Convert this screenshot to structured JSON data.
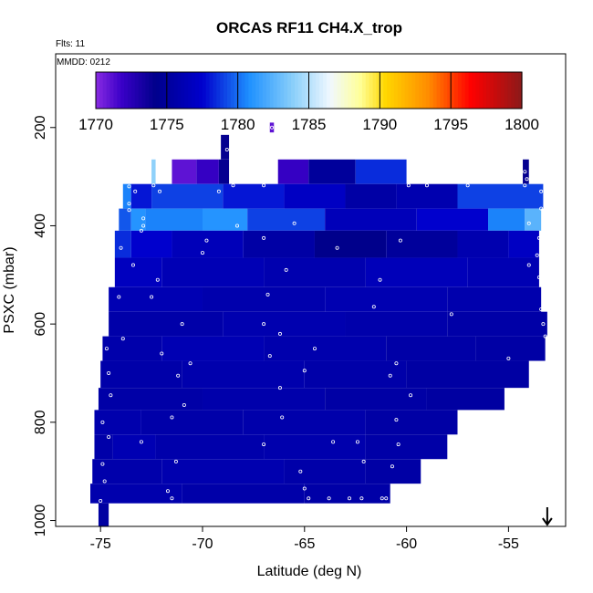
{
  "chart_data": {
    "type": "heatmap",
    "title": "ORCAS RF11 CH4.X_trop",
    "flights_note": "Flts: 11",
    "date_note": "MMDD: 0212",
    "xlabel": "Latitude (deg N)",
    "ylabel": "PSXC (mbar)",
    "xlim": [
      -77.2,
      -52.2
    ],
    "ylim": [
      1012,
      50
    ],
    "x_ticks": [
      -75,
      -70,
      -65,
      -60,
      -55
    ],
    "x_tick_labels": [
      "-75",
      "-70",
      "-65",
      "-60",
      "-55"
    ],
    "y_ticks": [
      200,
      400,
      600,
      800,
      1000
    ],
    "y_tick_labels": [
      "200",
      "400",
      "600",
      "800",
      "1000"
    ],
    "colorbar": {
      "range": [
        1770,
        1800
      ],
      "ticks": [
        1770,
        1775,
        1780,
        1785,
        1790,
        1795,
        1800
      ],
      "tick_labels": [
        "1770",
        "1775",
        "1780",
        "1785",
        "1790",
        "1795",
        "1800"
      ],
      "color_stops": [
        [
          0.0,
          "#8a2be2"
        ],
        [
          0.06,
          "#3a00c8"
        ],
        [
          0.14,
          "#00008b"
        ],
        [
          0.25,
          "#0000cd"
        ],
        [
          0.36,
          "#1e90ff"
        ],
        [
          0.46,
          "#87cefa"
        ],
        [
          0.55,
          "#f0f8ff"
        ],
        [
          0.62,
          "#ffff99"
        ],
        [
          0.68,
          "#ffd700"
        ],
        [
          0.78,
          "#ff8c00"
        ],
        [
          0.88,
          "#ff0000"
        ],
        [
          1.0,
          "#8b1a1a"
        ]
      ]
    },
    "rows": [
      {
        "p_top": 190,
        "p_bot": 210,
        "segments": [
          [
            -66.7,
            -66.5,
            1771
          ]
        ]
      },
      {
        "p_top": 215,
        "p_bot": 265,
        "segments": [
          [
            -69.1,
            -68.7,
            1774
          ]
        ]
      },
      {
        "p_top": 265,
        "p_bot": 315,
        "segments": [
          [
            -72.5,
            -72.3,
            1784
          ],
          [
            -71.5,
            -70.3,
            1771
          ],
          [
            -70.3,
            -69.2,
            1772
          ],
          [
            -69.2,
            -68.7,
            1774
          ],
          [
            -66.3,
            -64.8,
            1772
          ],
          [
            -64.8,
            -62.5,
            1775
          ],
          [
            -62.5,
            -60.0,
            1778.5
          ],
          [
            -54.3,
            -54.0,
            1774
          ]
        ]
      },
      {
        "p_top": 315,
        "p_bot": 365,
        "segments": [
          [
            -73.9,
            -73.5,
            1780.5
          ],
          [
            -73.5,
            -72.5,
            1778
          ],
          [
            -72.5,
            -69.0,
            1779
          ],
          [
            -69.0,
            -66.0,
            1778
          ],
          [
            -66.0,
            -63.0,
            1777
          ],
          [
            -63.0,
            -60.5,
            1775.5
          ],
          [
            -60.5,
            -57.5,
            1776
          ],
          [
            -57.5,
            -53.3,
            1779
          ]
        ]
      },
      {
        "p_top": 365,
        "p_bot": 410,
        "segments": [
          [
            -74.1,
            -73.5,
            1779.5
          ],
          [
            -73.5,
            -72.8,
            1781
          ],
          [
            -72.8,
            -70.0,
            1780.5
          ],
          [
            -70.0,
            -67.8,
            1781
          ],
          [
            -67.8,
            -64.0,
            1779
          ],
          [
            -64.0,
            -59.5,
            1776.5
          ],
          [
            -59.5,
            -56.0,
            1777.5
          ],
          [
            -56.0,
            -54.2,
            1780.5
          ],
          [
            -54.2,
            -53.4,
            1782.5
          ]
        ]
      },
      {
        "p_top": 410,
        "p_bot": 465,
        "segments": [
          [
            -74.3,
            -73.5,
            1778.5
          ],
          [
            -73.5,
            -71.5,
            1777.5
          ],
          [
            -71.5,
            -68.0,
            1776.5
          ],
          [
            -68.0,
            -64.5,
            1775.5
          ],
          [
            -64.5,
            -61.0,
            1774.2
          ],
          [
            -61.0,
            -57.5,
            1775
          ],
          [
            -57.5,
            -55.0,
            1776
          ],
          [
            -55.0,
            -53.5,
            1777
          ]
        ]
      },
      {
        "p_top": 465,
        "p_bot": 525,
        "segments": [
          [
            -74.3,
            -72.0,
            1776.8
          ],
          [
            -72.0,
            -67.0,
            1776.3
          ],
          [
            -67.0,
            -62.0,
            1776
          ],
          [
            -62.0,
            -57.0,
            1776.5
          ],
          [
            -57.0,
            -53.5,
            1776.2
          ]
        ]
      },
      {
        "p_top": 525,
        "p_bot": 575,
        "segments": [
          [
            -74.6,
            -70.0,
            1776.2
          ],
          [
            -70.0,
            -64.0,
            1775.9
          ],
          [
            -64.0,
            -58.0,
            1776.1
          ],
          [
            -58.0,
            -53.4,
            1775.9
          ]
        ]
      },
      {
        "p_top": 575,
        "p_bot": 625,
        "segments": [
          [
            -74.6,
            -69.0,
            1775.7
          ],
          [
            -69.0,
            -63.0,
            1776
          ],
          [
            -63.0,
            -58.0,
            1775.8
          ],
          [
            -58.0,
            -53.1,
            1775.6
          ]
        ]
      },
      {
        "p_top": 625,
        "p_bot": 675,
        "segments": [
          [
            -74.9,
            -72.0,
            1775.8
          ],
          [
            -72.0,
            -67.0,
            1776.2
          ],
          [
            -67.0,
            -61.0,
            1775.9
          ],
          [
            -61.0,
            -56.6,
            1775.6
          ],
          [
            -56.6,
            -53.2,
            1775.5
          ]
        ]
      },
      {
        "p_top": 675,
        "p_bot": 730,
        "segments": [
          [
            -75.0,
            -71.0,
            1775.7
          ],
          [
            -71.0,
            -65.0,
            1775.9
          ],
          [
            -65.0,
            -60.0,
            1775.7
          ],
          [
            -60.0,
            -54.0,
            1775.4
          ]
        ]
      },
      {
        "p_top": 730,
        "p_bot": 775,
        "segments": [
          [
            -75.1,
            -70.0,
            1775.6
          ],
          [
            -70.0,
            -64.0,
            1775.8
          ],
          [
            -64.0,
            -59.0,
            1775.5
          ],
          [
            -59.0,
            -55.2,
            1775.3
          ]
        ]
      },
      {
        "p_top": 775,
        "p_bot": 825,
        "segments": [
          [
            -75.3,
            -73.0,
            1775.9
          ],
          [
            -73.0,
            -68.0,
            1775.7
          ],
          [
            -68.0,
            -62.0,
            1775.8
          ],
          [
            -62.0,
            -57.5,
            1775.5
          ]
        ]
      },
      {
        "p_top": 825,
        "p_bot": 875,
        "segments": [
          [
            -75.3,
            -74.4,
            1775.7
          ],
          [
            -74.4,
            -72.3,
            1776.2
          ],
          [
            -72.3,
            -67.0,
            1775.8
          ],
          [
            -67.0,
            -62.0,
            1775.9
          ],
          [
            -62.0,
            -58.0,
            1775.6
          ]
        ]
      },
      {
        "p_top": 875,
        "p_bot": 925,
        "segments": [
          [
            -75.4,
            -72.0,
            1775.8
          ],
          [
            -72.0,
            -66.0,
            1776
          ],
          [
            -66.0,
            -62.0,
            1775.7
          ],
          [
            -62.0,
            -59.3,
            1775.5
          ]
        ]
      },
      {
        "p_top": 925,
        "p_bot": 965,
        "segments": [
          [
            -75.5,
            -71.0,
            1775.9
          ],
          [
            -71.0,
            -65.0,
            1775.7
          ],
          [
            -65.0,
            -60.8,
            1775.6
          ]
        ]
      },
      {
        "p_top": 965,
        "p_bot": 1012,
        "segments": [
          [
            -75.1,
            -74.6,
            1775.3
          ]
        ]
      }
    ],
    "sample_points": [
      [
        -66.6,
        200
      ],
      [
        -68.8,
        245
      ],
      [
        -68.6,
        245
      ],
      [
        -54.2,
        290
      ],
      [
        -54.1,
        305
      ],
      [
        -73.6,
        320
      ],
      [
        -72.4,
        318
      ],
      [
        -68.5,
        318
      ],
      [
        -67.0,
        318
      ],
      [
        -59.9,
        318
      ],
      [
        -59.0,
        318
      ],
      [
        -57.0,
        318
      ],
      [
        -54.2,
        318
      ],
      [
        -73.3,
        330
      ],
      [
        -72.1,
        330
      ],
      [
        -69.2,
        330
      ],
      [
        -53.4,
        330
      ],
      [
        -73.6,
        355
      ],
      [
        -53.4,
        365
      ],
      [
        -73.6,
        368
      ],
      [
        -72.9,
        385
      ],
      [
        -72.9,
        400
      ],
      [
        -73.0,
        410
      ],
      [
        -68.3,
        400
      ],
      [
        -65.5,
        395
      ],
      [
        -54.0,
        395
      ],
      [
        -69.8,
        430
      ],
      [
        -67.0,
        425
      ],
      [
        -60.3,
        430
      ],
      [
        -53.5,
        425
      ],
      [
        -74.0,
        445
      ],
      [
        -70.0,
        455
      ],
      [
        -63.4,
        445
      ],
      [
        -53.6,
        460
      ],
      [
        -73.4,
        480
      ],
      [
        -72.2,
        510
      ],
      [
        -65.9,
        490
      ],
      [
        -61.3,
        510
      ],
      [
        -54.0,
        480
      ],
      [
        -53.5,
        505
      ],
      [
        -74.1,
        545
      ],
      [
        -72.5,
        545
      ],
      [
        -66.8,
        540
      ],
      [
        -61.6,
        565
      ],
      [
        -53.4,
        570
      ],
      [
        -71.0,
        600
      ],
      [
        -67.0,
        600
      ],
      [
        -57.8,
        580
      ],
      [
        -53.3,
        600
      ],
      [
        -73.9,
        630
      ],
      [
        -66.2,
        620
      ],
      [
        -53.2,
        625
      ],
      [
        -74.7,
        650
      ],
      [
        -72.0,
        660
      ],
      [
        -70.6,
        680
      ],
      [
        -66.7,
        665
      ],
      [
        -64.5,
        650
      ],
      [
        -60.5,
        680
      ],
      [
        -55.0,
        670
      ],
      [
        -74.6,
        700
      ],
      [
        -71.2,
        705
      ],
      [
        -65.0,
        695
      ],
      [
        -60.8,
        705
      ],
      [
        -74.5,
        745
      ],
      [
        -70.9,
        765
      ],
      [
        -66.2,
        730
      ],
      [
        -59.8,
        745
      ],
      [
        -74.9,
        800
      ],
      [
        -71.5,
        790
      ],
      [
        -66.1,
        790
      ],
      [
        -60.5,
        795
      ],
      [
        -74.6,
        830
      ],
      [
        -73.0,
        840
      ],
      [
        -67.0,
        845
      ],
      [
        -63.6,
        840
      ],
      [
        -62.4,
        840
      ],
      [
        -60.4,
        845
      ],
      [
        -74.9,
        885
      ],
      [
        -71.3,
        880
      ],
      [
        -65.2,
        900
      ],
      [
        -62.1,
        880
      ],
      [
        -60.7,
        890
      ],
      [
        -74.8,
        920
      ],
      [
        -71.7,
        940
      ],
      [
        -65.0,
        935
      ],
      [
        -62.8,
        955
      ],
      [
        -61.0,
        955
      ],
      [
        -75.0,
        960
      ],
      [
        -71.5,
        955
      ],
      [
        -64.8,
        955
      ],
      [
        -63.8,
        955
      ],
      [
        -62.2,
        955
      ],
      [
        -61.2,
        955
      ]
    ],
    "marker": {
      "x": -53.1,
      "label": "downward arrow"
    }
  }
}
